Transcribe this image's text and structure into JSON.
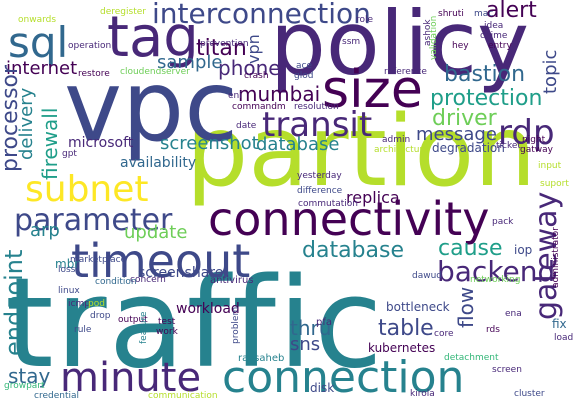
{
  "palette": {
    "dark_purple": "#440154",
    "purple": "#482878",
    "indigo": "#3e4989",
    "blue": "#31688e",
    "teal": "#26828e",
    "green_teal": "#1f9e89",
    "green": "#35b779",
    "light_green": "#6ece58",
    "lime": "#b5de2b",
    "yellow": "#fde725"
  },
  "words": [
    {
      "id": "traffic",
      "text": "traffic"
    },
    {
      "id": "partion",
      "text": "partion"
    },
    {
      "id": "vpc",
      "text": "vpc"
    },
    {
      "id": "policy",
      "text": "policy"
    },
    {
      "id": "connectivity",
      "text": "connectivity"
    },
    {
      "id": "connection",
      "text": "connection"
    },
    {
      "id": "timeout",
      "text": "timeout"
    },
    {
      "id": "minute",
      "text": "minute"
    },
    {
      "id": "tag",
      "text": "tag"
    },
    {
      "id": "size",
      "text": "size"
    },
    {
      "id": "interconnection",
      "text": "interconnection"
    },
    {
      "id": "subnet",
      "text": "subnet"
    },
    {
      "id": "parameter",
      "text": "parameter"
    },
    {
      "id": "sql",
      "text": "sql"
    },
    {
      "id": "transit",
      "text": "transit"
    },
    {
      "id": "rdp",
      "text": "rdp"
    },
    {
      "id": "backend",
      "text": "backend"
    },
    {
      "id": "gateway",
      "text": "gateway"
    },
    {
      "id": "endpoint",
      "text": "endpoint"
    },
    {
      "id": "alert",
      "text": "alert"
    },
    {
      "id": "protection",
      "text": "protection"
    },
    {
      "id": "bastion",
      "text": "bastion"
    },
    {
      "id": "driver",
      "text": "driver"
    },
    {
      "id": "message",
      "text": "message"
    },
    {
      "id": "titan",
      "text": "titan"
    },
    {
      "id": "phone",
      "text": "phone"
    },
    {
      "id": "mumbai",
      "text": "mumbai"
    },
    {
      "id": "processor",
      "text": "processor"
    },
    {
      "id": "internet",
      "text": "internet"
    },
    {
      "id": "firewall",
      "text": "firewall"
    },
    {
      "id": "delivery",
      "text": "delivery"
    },
    {
      "id": "screenshot",
      "text": "screenshot"
    },
    {
      "id": "database",
      "text": "database"
    },
    {
      "id": "cause",
      "text": "cause"
    },
    {
      "id": "discussion",
      "text": "discussion"
    },
    {
      "id": "update",
      "text": "update"
    },
    {
      "id": "arp",
      "text": "arp"
    },
    {
      "id": "table",
      "text": "table"
    },
    {
      "id": "thru",
      "text": "thru"
    },
    {
      "id": "sns",
      "text": "sns"
    },
    {
      "id": "stay",
      "text": "stay"
    },
    {
      "id": "flow",
      "text": "flow"
    },
    {
      "id": "topic",
      "text": "topic"
    },
    {
      "id": "sample",
      "text": "sample"
    },
    {
      "id": "replica",
      "text": "replica"
    },
    {
      "id": "vpn",
      "text": "vpn"
    },
    {
      "id": "microsoft",
      "text": "microsoft"
    },
    {
      "id": "availability",
      "text": "availability"
    },
    {
      "id": "screenshare",
      "text": "screenshare"
    },
    {
      "id": "workload",
      "text": "workload"
    },
    {
      "id": "bottleneck",
      "text": "bottleneck"
    },
    {
      "id": "disk",
      "text": "disk"
    },
    {
      "id": "mbr",
      "text": "mbr"
    },
    {
      "id": "iop",
      "text": "iop"
    },
    {
      "id": "fix",
      "text": "fix"
    },
    {
      "id": "degradation",
      "text": "degradation"
    },
    {
      "id": "yesterday",
      "text": "yesterday"
    },
    {
      "id": "difference",
      "text": "difference"
    },
    {
      "id": "commutation",
      "text": "commutation"
    },
    {
      "id": "kubernetes",
      "text": "kubernetes"
    },
    {
      "id": "ravsaheb",
      "text": "ravsaheb"
    },
    {
      "id": "pfa",
      "text": "pfa"
    },
    {
      "id": "antivirus",
      "text": "antivirus"
    },
    {
      "id": "concern",
      "text": "concern"
    },
    {
      "id": "condition",
      "text": "condition"
    },
    {
      "id": "marketplace",
      "text": "marketplace"
    },
    {
      "id": "loss",
      "text": "loss"
    },
    {
      "id": "linux",
      "text": "linux"
    },
    {
      "id": "icmp",
      "text": "icmp"
    },
    {
      "id": "pod",
      "text": "pod"
    },
    {
      "id": "drop",
      "text": "drop"
    },
    {
      "id": "rule",
      "text": "rule"
    },
    {
      "id": "output",
      "text": "output"
    },
    {
      "id": "test",
      "text": "test"
    },
    {
      "id": "work",
      "text": "work"
    },
    {
      "id": "feature",
      "text": "feature"
    },
    {
      "id": "problem",
      "text": "problem"
    },
    {
      "id": "core",
      "text": "core"
    },
    {
      "id": "rds",
      "text": "rds"
    },
    {
      "id": "ena",
      "text": "ena"
    },
    {
      "id": "load",
      "text": "load"
    },
    {
      "id": "detachment",
      "text": "detachment"
    },
    {
      "id": "screen",
      "text": "screen"
    },
    {
      "id": "cluster",
      "text": "cluster"
    },
    {
      "id": "kirola",
      "text": "kirola"
    },
    {
      "id": "credential",
      "text": "credential"
    },
    {
      "id": "communication",
      "text": "communication"
    },
    {
      "id": "growpart",
      "text": "growpart"
    },
    {
      "id": "dawud",
      "text": "dawud"
    },
    {
      "id": "pack",
      "text": "pack"
    },
    {
      "id": "networking",
      "text": "networking"
    },
    {
      "id": "administrator",
      "text": "administrator"
    },
    {
      "id": "admin",
      "text": "admin"
    },
    {
      "id": "architecture",
      "text": "architecture"
    },
    {
      "id": "date",
      "text": "date"
    },
    {
      "id": "eni",
      "text": "eni"
    },
    {
      "id": "commandm",
      "text": "commandm"
    },
    {
      "id": "resolution",
      "text": "resolution"
    },
    {
      "id": "crash",
      "text": "crash"
    },
    {
      "id": "glod",
      "text": "glod"
    },
    {
      "id": "ace",
      "text": "ace"
    },
    {
      "id": "reference",
      "text": "reference"
    },
    {
      "id": "role",
      "text": "role"
    },
    {
      "id": "ashok",
      "text": "ashok"
    },
    {
      "id": "validation",
      "text": "validation"
    },
    {
      "id": "shruti",
      "text": "shruti"
    },
    {
      "id": "mac",
      "text": "mac"
    },
    {
      "id": "idea",
      "text": "idea"
    },
    {
      "id": "chime",
      "text": "chime"
    },
    {
      "id": "hey",
      "text": "hey"
    },
    {
      "id": "entry",
      "text": "entry"
    },
    {
      "id": "onwards",
      "text": "onwards"
    },
    {
      "id": "deregister",
      "text": "deregister"
    },
    {
      "id": "operation",
      "text": "operation"
    },
    {
      "id": "prevention",
      "text": "prevention"
    },
    {
      "id": "restore",
      "text": "restore"
    },
    {
      "id": "cloudendserver",
      "text": "cloudendserver"
    },
    {
      "id": "ssm",
      "text": "ssm"
    },
    {
      "id": "gpt",
      "text": "gpt"
    },
    {
      "id": "night",
      "text": "night"
    },
    {
      "id": "ticket",
      "text": "ticket"
    },
    {
      "id": "gateway2",
      "text": "gatway"
    },
    {
      "id": "input",
      "text": "input"
    },
    {
      "id": "suport",
      "text": "suport"
    }
  ]
}
